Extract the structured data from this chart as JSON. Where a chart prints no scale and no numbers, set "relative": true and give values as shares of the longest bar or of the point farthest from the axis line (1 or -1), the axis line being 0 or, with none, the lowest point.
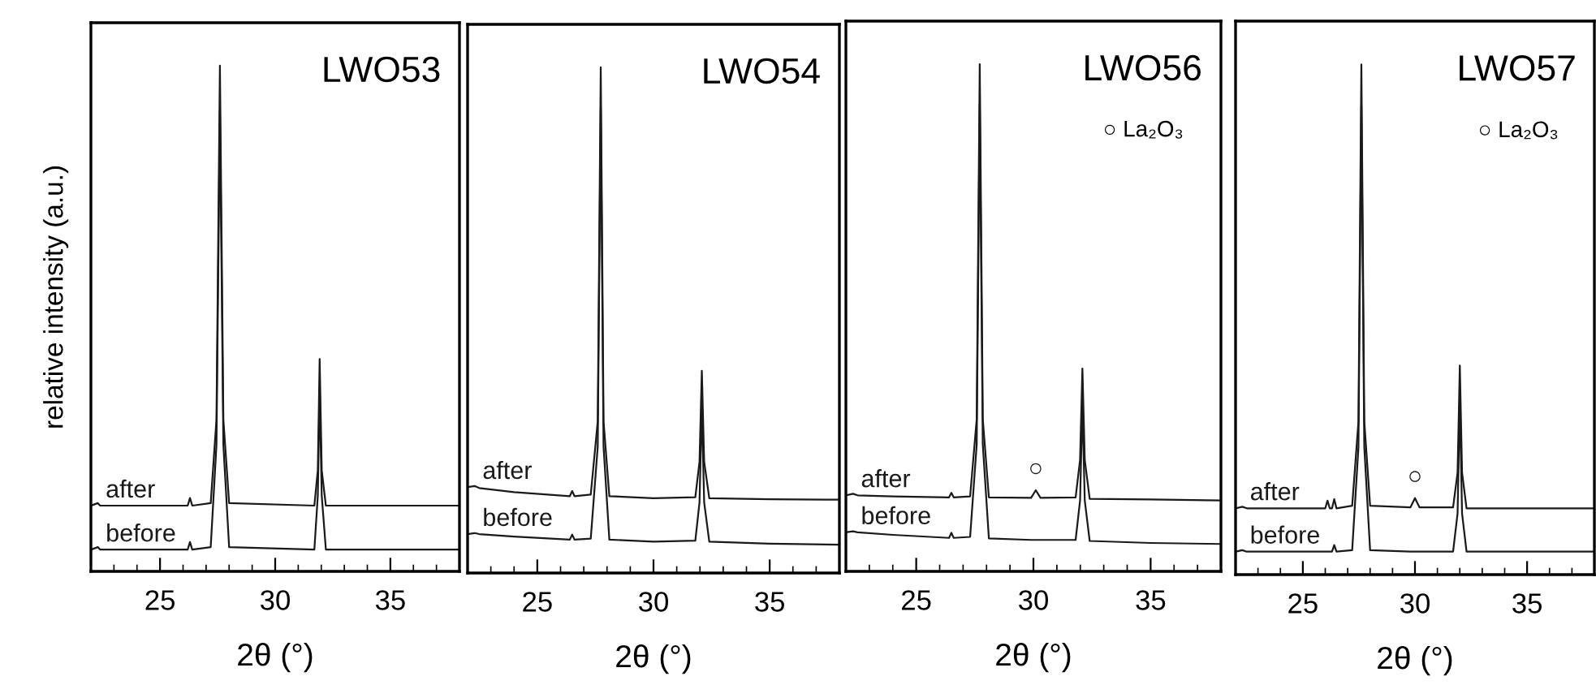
{
  "chart_data": [
    {
      "type": "line",
      "relative": true,
      "xlabel": "2θ (°)",
      "ylabel": "relative intensity (a.u.)",
      "xlim": [
        22,
        38
      ],
      "xticks": [
        25,
        30,
        35
      ],
      "grid": false,
      "legend": false,
      "line_style": "solid",
      "annotations": [
        "LWO53"
      ],
      "x": [
        22,
        22.3,
        22.4,
        26.2,
        26.3,
        26.4,
        27.2,
        27.45,
        27.6,
        27.75,
        28.0,
        31.7,
        31.85,
        31.93,
        32.02,
        32.2,
        38
      ],
      "series": [
        {
          "name": "after",
          "color": "#1a1a1a",
          "values": [
            0.13,
            0.135,
            0.13,
            0.13,
            0.145,
            0.13,
            0.135,
            0.3,
            1.0,
            0.3,
            0.135,
            0.13,
            0.2,
            0.42,
            0.2,
            0.13,
            0.13
          ]
        },
        {
          "name": "before",
          "color": "#1a1a1a",
          "values": [
            0.043,
            0.048,
            0.043,
            0.043,
            0.058,
            0.043,
            0.048,
            0.25,
            0.91,
            0.25,
            0.048,
            0.043,
            0.15,
            0.36,
            0.15,
            0.043,
            0.043
          ]
        }
      ]
    },
    {
      "type": "line",
      "relative": true,
      "xlabel": "2θ (°)",
      "xlim": [
        22,
        38
      ],
      "xticks": [
        25,
        30,
        35
      ],
      "grid": false,
      "legend": false,
      "line_style": "solid",
      "annotations": [
        "LWO54"
      ],
      "x": [
        22,
        22.3,
        22.5,
        24,
        26.4,
        26.5,
        26.6,
        27.3,
        27.6,
        27.73,
        27.85,
        28.1,
        30,
        31.8,
        31.98,
        32.08,
        32.18,
        32.4,
        35,
        38
      ],
      "series": [
        {
          "name": "after",
          "color": "#1a1a1a",
          "values": [
            0.17,
            0.172,
            0.168,
            0.16,
            0.152,
            0.162,
            0.152,
            0.155,
            0.3,
            1.0,
            0.3,
            0.152,
            0.148,
            0.15,
            0.22,
            0.4,
            0.22,
            0.148,
            0.146,
            0.145
          ]
        },
        {
          "name": "before",
          "color": "#1a1a1a",
          "values": [
            0.077,
            0.079,
            0.077,
            0.072,
            0.066,
            0.076,
            0.066,
            0.068,
            0.25,
            0.92,
            0.25,
            0.066,
            0.062,
            0.064,
            0.14,
            0.33,
            0.14,
            0.062,
            0.058,
            0.056
          ]
        }
      ]
    },
    {
      "type": "line",
      "relative": true,
      "xlabel": "2θ (°)",
      "xlim": [
        22,
        38
      ],
      "xticks": [
        25,
        30,
        35
      ],
      "grid": false,
      "legend": false,
      "line_style": "solid",
      "annotations": [
        "LWO56",
        "○ La₂O₃",
        {
          "text": "○",
          "x": 30.1,
          "y": 0.16
        }
      ],
      "x": [
        22,
        22.3,
        22.5,
        24,
        26.4,
        26.5,
        26.6,
        27.3,
        27.58,
        27.71,
        27.84,
        28.1,
        29.9,
        30.1,
        30.3,
        31.8,
        31.99,
        32.09,
        32.19,
        32.4,
        35,
        38
      ],
      "series": [
        {
          "name": "after",
          "color": "#1a1a1a",
          "values": [
            0.15,
            0.153,
            0.15,
            0.148,
            0.146,
            0.155,
            0.146,
            0.148,
            0.3,
            1.0,
            0.3,
            0.146,
            0.145,
            0.16,
            0.145,
            0.146,
            0.22,
            0.4,
            0.22,
            0.143,
            0.142,
            0.14
          ]
        },
        {
          "name": "before",
          "color": "#1a1a1a",
          "values": [
            0.077,
            0.079,
            0.077,
            0.072,
            0.066,
            0.076,
            0.066,
            0.068,
            0.25,
            0.92,
            0.25,
            0.065,
            0.062,
            0.062,
            0.062,
            0.062,
            0.14,
            0.33,
            0.14,
            0.06,
            0.056,
            0.054
          ]
        }
      ]
    },
    {
      "type": "line",
      "relative": true,
      "xlabel": "2θ (°)",
      "xlim": [
        22,
        38
      ],
      "xticks": [
        25,
        30,
        35
      ],
      "grid": false,
      "legend": false,
      "line_style": "solid",
      "annotations": [
        "LWO57",
        "○ La₂O₃",
        {
          "text": "○",
          "x": 30.0,
          "y": 0.15
        }
      ],
      "x": [
        22,
        22.3,
        22.5,
        26.0,
        26.1,
        26.2,
        26.3,
        26.4,
        26.5,
        27.2,
        27.48,
        27.61,
        27.74,
        28.0,
        29.8,
        30.0,
        30.2,
        31.7,
        31.9,
        32.0,
        32.1,
        32.3,
        38
      ],
      "series": [
        {
          "name": "after",
          "color": "#1a1a1a",
          "values": [
            0.13,
            0.133,
            0.13,
            0.13,
            0.145,
            0.13,
            0.13,
            0.148,
            0.13,
            0.135,
            0.3,
            1.0,
            0.3,
            0.135,
            0.132,
            0.15,
            0.132,
            0.132,
            0.2,
            0.41,
            0.2,
            0.13,
            0.13
          ]
        },
        {
          "name": "before",
          "color": "#1a1a1a",
          "values": [
            0.045,
            0.048,
            0.045,
            0.045,
            0.045,
            0.045,
            0.045,
            0.058,
            0.045,
            0.048,
            0.25,
            0.92,
            0.25,
            0.048,
            0.045,
            0.045,
            0.045,
            0.045,
            0.12,
            0.34,
            0.12,
            0.045,
            0.045
          ]
        }
      ]
    }
  ]
}
